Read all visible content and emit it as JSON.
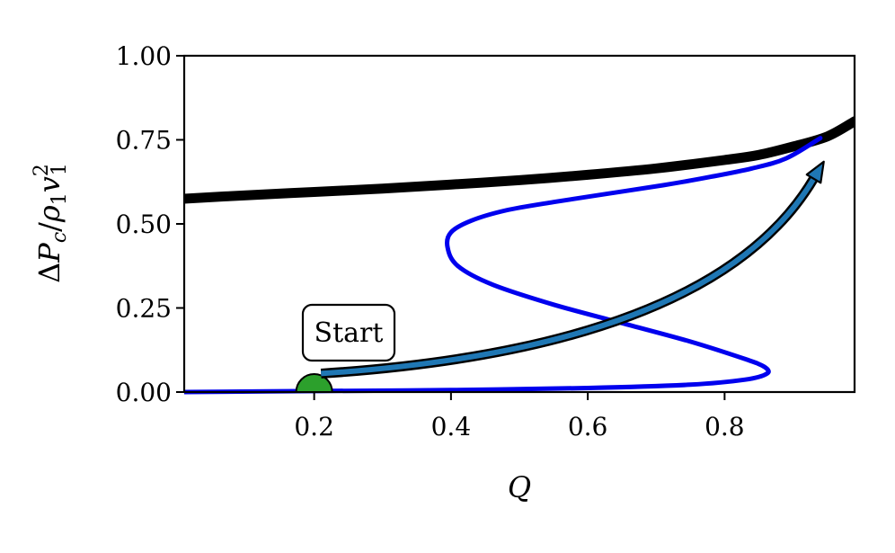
{
  "chart_data": {
    "type": "line",
    "xlabel": "Q",
    "ylabel_parts": {
      "delta": "Δ",
      "P": "P",
      "c": "c",
      "slash": "/",
      "rho": "ρ",
      "one_a": "1",
      "v": "v",
      "two": "2",
      "one_b": "1"
    },
    "xlim": [
      0.01,
      0.99
    ],
    "ylim": [
      0.0,
      1.0
    ],
    "xticks": [
      0.2,
      0.4,
      0.6,
      0.8
    ],
    "xtick_labels": [
      "0.2",
      "0.4",
      "0.6",
      "0.8"
    ],
    "yticks": [
      0.0,
      0.25,
      0.5,
      0.75,
      1.0
    ],
    "ytick_labels": [
      "0.00",
      "0.25",
      "0.50",
      "0.75",
      "1.00"
    ],
    "grid": false,
    "series": [
      {
        "color": "#000000",
        "style": "thick",
        "x": [
          0.01,
          0.1,
          0.2,
          0.3,
          0.4,
          0.5,
          0.6,
          0.7,
          0.8,
          0.85,
          0.9,
          0.95,
          0.99
        ],
        "y": [
          0.575,
          0.585,
          0.595,
          0.605,
          0.617,
          0.63,
          0.646,
          0.665,
          0.69,
          0.705,
          0.73,
          0.76,
          0.805
        ]
      },
      {
        "color": "#0000ee",
        "style": "thin",
        "x": [
          0.01,
          0.2,
          0.4,
          0.6,
          0.75,
          0.83,
          0.862,
          0.858,
          0.83,
          0.75,
          0.65,
          0.55,
          0.46,
          0.41,
          0.395,
          0.4,
          0.43,
          0.48,
          0.55,
          0.63,
          0.71,
          0.78,
          0.84,
          0.89,
          0.94
        ],
        "y": [
          0.0,
          0.003,
          0.006,
          0.012,
          0.022,
          0.037,
          0.055,
          0.075,
          0.098,
          0.15,
          0.205,
          0.26,
          0.32,
          0.375,
          0.43,
          0.475,
          0.51,
          0.54,
          0.565,
          0.59,
          0.615,
          0.64,
          0.665,
          0.695,
          0.755
        ]
      }
    ],
    "annotation": {
      "text": "Start",
      "point": [
        0.2,
        0.0
      ],
      "marker_color": "#2ca02c",
      "arrow_color": "#1f77b4",
      "arrow_from": [
        0.21,
        0.055
      ],
      "arrow_to": [
        0.945,
        0.685
      ]
    }
  }
}
